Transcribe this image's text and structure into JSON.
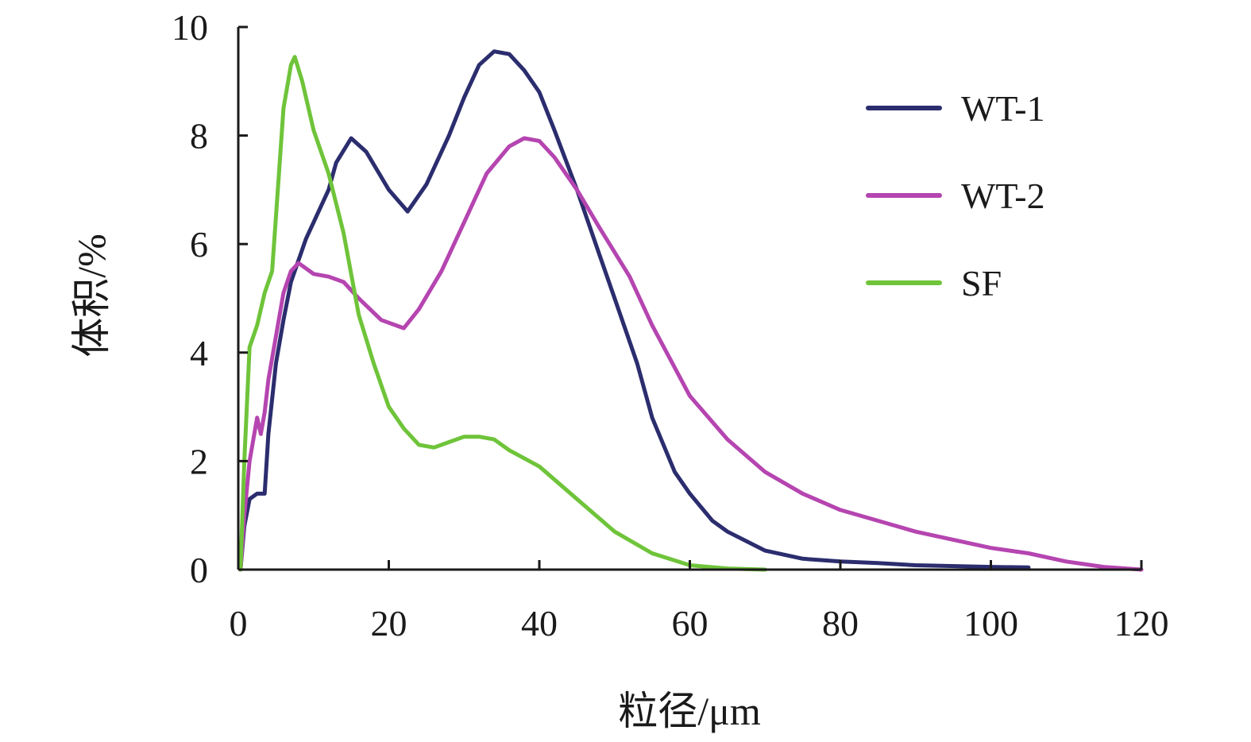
{
  "chart_data": {
    "type": "line",
    "xlabel": "粒径/μm",
    "ylabel": "体积/%",
    "xlim": [
      0,
      120
    ],
    "ylim": [
      0,
      10
    ],
    "x_ticks": [
      0,
      20,
      40,
      60,
      80,
      100,
      120
    ],
    "y_ticks": [
      0,
      2,
      4,
      6,
      8,
      10
    ],
    "x_tick_labels": [
      "0",
      "20",
      "40",
      "60",
      "80",
      "100",
      "120"
    ],
    "y_tick_labels": [
      "0",
      "2",
      "4",
      "6",
      "8",
      "10"
    ],
    "grid": false,
    "legend_position": "top-right",
    "series": [
      {
        "name": "WT-1",
        "color": "#2b2d6e",
        "points": [
          [
            0.3,
            0
          ],
          [
            0.8,
            0.8
          ],
          [
            1.5,
            1.3
          ],
          [
            2.5,
            1.4
          ],
          [
            3.5,
            1.4
          ],
          [
            4,
            2.5
          ],
          [
            5,
            3.8
          ],
          [
            6,
            4.6
          ],
          [
            7,
            5.3
          ],
          [
            8,
            5.7
          ],
          [
            9,
            6.1
          ],
          [
            10,
            6.4
          ],
          [
            12,
            7.0
          ],
          [
            13,
            7.5
          ],
          [
            15,
            7.95
          ],
          [
            17,
            7.7
          ],
          [
            20,
            7.0
          ],
          [
            22.5,
            6.6
          ],
          [
            25,
            7.1
          ],
          [
            28,
            8.0
          ],
          [
            30,
            8.7
          ],
          [
            32,
            9.3
          ],
          [
            34,
            9.55
          ],
          [
            36,
            9.5
          ],
          [
            38,
            9.2
          ],
          [
            40,
            8.8
          ],
          [
            42,
            8.1
          ],
          [
            45,
            7.0
          ],
          [
            48,
            5.8
          ],
          [
            50,
            5.0
          ],
          [
            53,
            3.8
          ],
          [
            55,
            2.8
          ],
          [
            58,
            1.8
          ],
          [
            60,
            1.4
          ],
          [
            63,
            0.9
          ],
          [
            65,
            0.7
          ],
          [
            70,
            0.35
          ],
          [
            75,
            0.2
          ],
          [
            80,
            0.15
          ],
          [
            85,
            0.12
          ],
          [
            90,
            0.08
          ],
          [
            100,
            0.05
          ],
          [
            105,
            0.04
          ]
        ]
      },
      {
        "name": "WT-2",
        "color": "#b545b0",
        "points": [
          [
            0.3,
            0
          ],
          [
            0.8,
            1.0
          ],
          [
            1.5,
            2.0
          ],
          [
            2.5,
            2.8
          ],
          [
            3,
            2.5
          ],
          [
            3.5,
            2.9
          ],
          [
            4,
            3.5
          ],
          [
            5,
            4.3
          ],
          [
            6,
            5.1
          ],
          [
            7,
            5.5
          ],
          [
            8,
            5.65
          ],
          [
            10,
            5.45
          ],
          [
            12,
            5.4
          ],
          [
            14,
            5.3
          ],
          [
            16,
            5.0
          ],
          [
            19,
            4.6
          ],
          [
            22,
            4.45
          ],
          [
            24,
            4.8
          ],
          [
            27,
            5.5
          ],
          [
            30,
            6.4
          ],
          [
            33,
            7.3
          ],
          [
            36,
            7.8
          ],
          [
            38,
            7.95
          ],
          [
            40,
            7.9
          ],
          [
            42,
            7.6
          ],
          [
            45,
            7.0
          ],
          [
            48,
            6.3
          ],
          [
            52,
            5.4
          ],
          [
            55,
            4.5
          ],
          [
            60,
            3.2
          ],
          [
            65,
            2.4
          ],
          [
            70,
            1.8
          ],
          [
            75,
            1.4
          ],
          [
            80,
            1.1
          ],
          [
            85,
            0.9
          ],
          [
            90,
            0.7
          ],
          [
            95,
            0.55
          ],
          [
            100,
            0.4
          ],
          [
            105,
            0.3
          ],
          [
            110,
            0.15
          ],
          [
            115,
            0.05
          ],
          [
            120,
            0
          ]
        ]
      },
      {
        "name": "SF",
        "color": "#6fc43a",
        "points": [
          [
            0.3,
            0
          ],
          [
            0.8,
            2.0
          ],
          [
            1.5,
            4.1
          ],
          [
            2.5,
            4.5
          ],
          [
            3.5,
            5.1
          ],
          [
            4.5,
            5.5
          ],
          [
            5,
            6.5
          ],
          [
            6,
            8.5
          ],
          [
            7,
            9.3
          ],
          [
            7.5,
            9.45
          ],
          [
            8.5,
            9.0
          ],
          [
            10,
            8.1
          ],
          [
            12,
            7.3
          ],
          [
            14,
            6.2
          ],
          [
            16,
            4.7
          ],
          [
            18,
            3.8
          ],
          [
            20,
            3.0
          ],
          [
            22,
            2.6
          ],
          [
            24,
            2.3
          ],
          [
            26,
            2.25
          ],
          [
            28,
            2.35
          ],
          [
            30,
            2.45
          ],
          [
            32,
            2.45
          ],
          [
            34,
            2.4
          ],
          [
            36,
            2.2
          ],
          [
            40,
            1.9
          ],
          [
            45,
            1.3
          ],
          [
            50,
            0.7
          ],
          [
            55,
            0.3
          ],
          [
            60,
            0.08
          ],
          [
            65,
            0.02
          ],
          [
            70,
            0
          ]
        ]
      }
    ]
  }
}
